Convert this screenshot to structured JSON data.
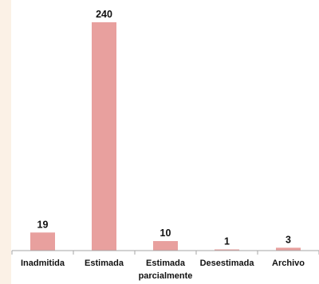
{
  "chart_data": {
    "type": "bar",
    "categories": [
      "Inadmitida",
      "Estimada",
      "Estimada parcialmente",
      "Desestimada",
      "Archivo"
    ],
    "category_lines": [
      [
        "Inadmitida"
      ],
      [
        "Estimada"
      ],
      [
        "Estimada",
        "parcialmente"
      ],
      [
        "Desestimada"
      ],
      [
        "Archivo"
      ]
    ],
    "values": [
      19,
      240,
      10,
      1,
      3
    ],
    "data_labels": [
      "19",
      "240",
      "10",
      "1",
      "3"
    ],
    "title": "",
    "xlabel": "",
    "ylabel": "",
    "ylim": [
      0,
      240
    ],
    "grid": false,
    "legend": "none",
    "bar_color": "#e8a09e",
    "background_color": "#ffffff",
    "page_background_color": "#fbf1e6"
  }
}
